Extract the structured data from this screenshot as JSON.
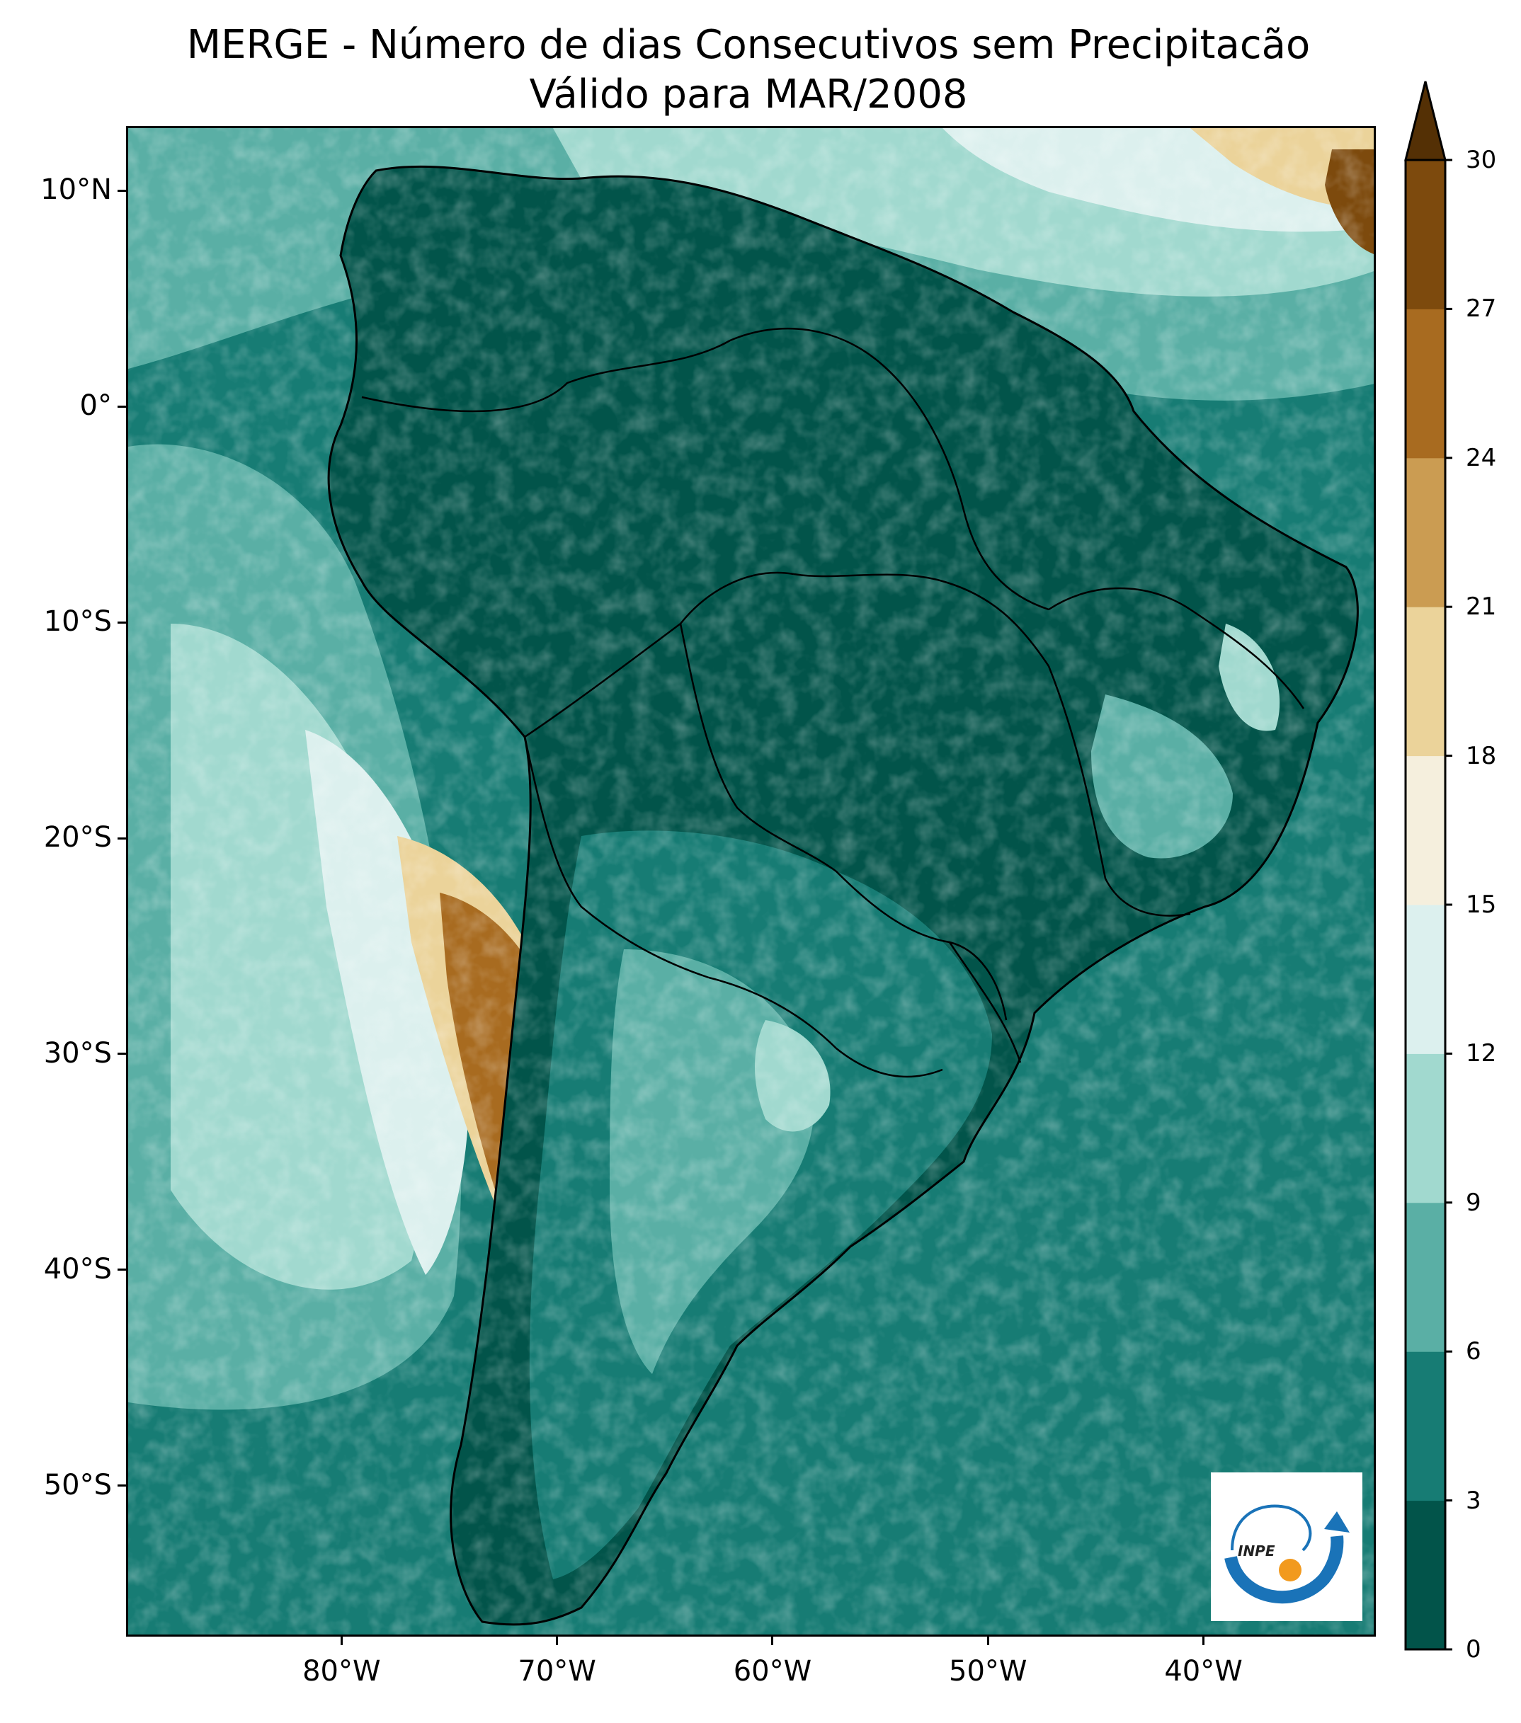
{
  "title": {
    "line1": "MERGE - Número de dias Consecutivos sem Precipitacão",
    "line2": "Válido para MAR/2008"
  },
  "chart_data": {
    "type": "heatmap",
    "map_extent": {
      "lon": [
        -90,
        -32
      ],
      "lat": [
        -57,
        13
      ]
    },
    "lat_ticks": [
      "10°N",
      "0°",
      "10°S",
      "20°S",
      "30°S",
      "40°S",
      "50°S"
    ],
    "lat_values": [
      10,
      0,
      -10,
      -20,
      -30,
      -40,
      -50
    ],
    "lon_ticks": [
      "80°W",
      "70°W",
      "60°W",
      "50°W",
      "40°W"
    ],
    "lon_values": [
      -80,
      -70,
      -60,
      -50,
      -40
    ],
    "colorbar": {
      "levels": [
        0,
        3,
        6,
        9,
        12,
        15,
        18,
        21,
        24,
        27,
        30
      ],
      "labels": [
        "0",
        "3",
        "6",
        "9",
        "12",
        "15",
        "18",
        "21",
        "24",
        "27",
        "30"
      ],
      "colors": [
        "#02544a",
        "#177c74",
        "#5aafa5",
        "#a1d9cf",
        "#dcf0ee",
        "#f5efdd",
        "#ebd39a",
        "#cb9c52",
        "#a86b20",
        "#7d4a0d",
        "#543005"
      ],
      "extend": "max"
    }
  },
  "logo": {
    "text": "INPE",
    "ring_color": "#1a73b8",
    "dot_color": "#f29a1e"
  }
}
